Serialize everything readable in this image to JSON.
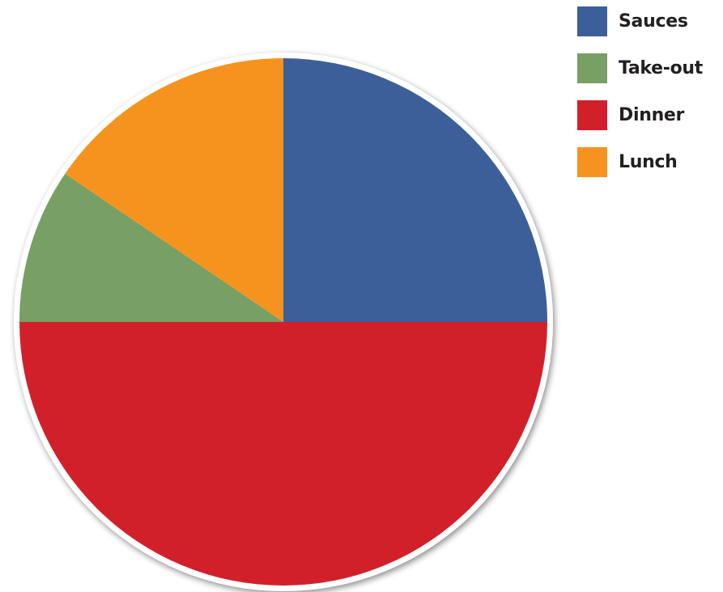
{
  "chart_data": {
    "type": "pie",
    "title": "",
    "start_angle_deg": 0,
    "direction": "clockwise",
    "legend_position": "top-right",
    "slices": [
      {
        "label": "Sauces",
        "value": 25,
        "color": "#3d5f99"
      },
      {
        "label": "Dinner",
        "value": 50,
        "color": "#d2202a"
      },
      {
        "label": "Take-out",
        "value": 9.5,
        "color": "#789f64"
      },
      {
        "label": "Lunch",
        "value": 15.5,
        "color": "#f6931f"
      }
    ],
    "legend": [
      {
        "label": "Sauces",
        "color": "#3d5f99"
      },
      {
        "label": "Take-out",
        "color": "#789f64"
      },
      {
        "label": "Dinner",
        "color": "#d2202a"
      },
      {
        "label": "Lunch",
        "color": "#f6931f"
      }
    ]
  }
}
